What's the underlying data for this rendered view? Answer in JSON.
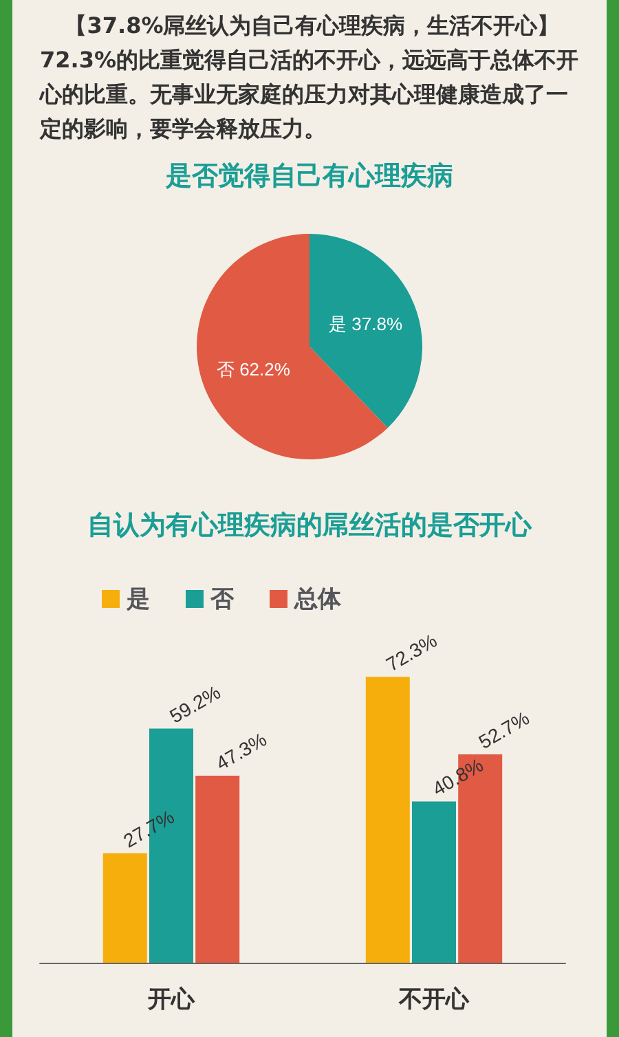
{
  "chart_data": [
    {
      "type": "pie",
      "title": "是否觉得自己有心理疾病",
      "annotations": [
        "【37.8%屌丝认为自己有心理疾病，生活不开心】",
        "72.3%的比重觉得自己活的不开心，远远高于总体不开心的比重。无事业无家庭的压力对其心理健康造成了一定的影响，要学会释放压力。"
      ],
      "categories": [
        "是",
        "否"
      ],
      "values": [
        37.8,
        62.2
      ],
      "colors": [
        "#1a9e96",
        "#e05a44"
      ],
      "value_labels": [
        "37.8%",
        "62.2%"
      ],
      "legend": false
    },
    {
      "type": "bar",
      "title": "自认为有心理疾病的屌丝活的是否开心",
      "categories": [
        "开心",
        "不开心"
      ],
      "legend": "top left",
      "grid": false,
      "tick_labels": "x",
      "series": [
        {
          "name": "是",
          "color": "#f5ae0c",
          "values": [
            27.7,
            72.3
          ],
          "value_labels": [
            "27.7%",
            "72.3%"
          ]
        },
        {
          "name": "否",
          "color": "#1a9e96",
          "values": [
            59.2,
            40.8
          ],
          "value_labels": [
            "59.2%",
            "40.8%"
          ]
        },
        {
          "name": "总体",
          "color": "#e05a44",
          "values": [
            47.3,
            52.7
          ],
          "value_labels": [
            "47.3%",
            "52.7%"
          ]
        }
      ]
    }
  ]
}
